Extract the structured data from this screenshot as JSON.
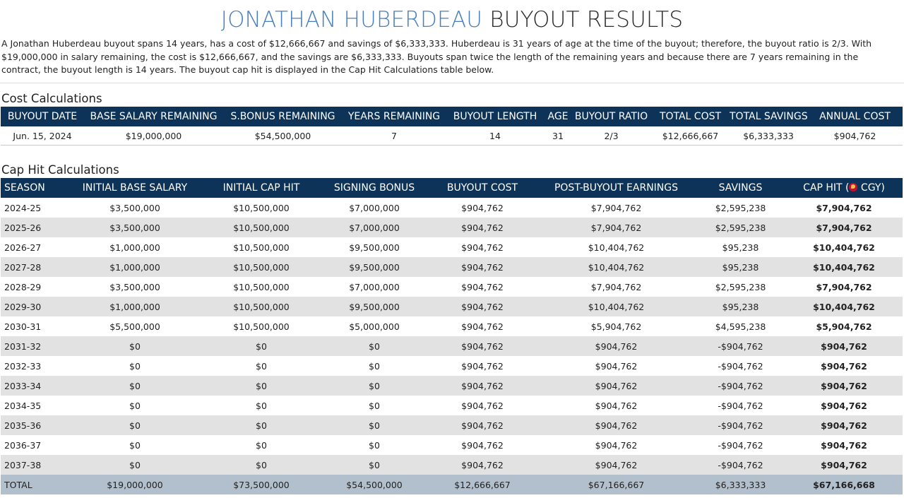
{
  "title": {
    "name": "JONATHAN HUBERDEAU",
    "rest": "BUYOUT RESULTS"
  },
  "intro": "A Jonathan Huberdeau buyout spans 14 years, has a cost of $12,666,667 and savings of $6,333,333. Huberdeau is 31 years of age at the time of the buyout; therefore, the buyout ratio is 2/3. With $19,000,000 in salary remaining, the cost is $12,666,667, and the savings are $6,333,333. Buyouts span twice the length of the remaining years and because there are 7 years remaining in the contract, the buyout length is 14 years. The buyout cap hit is displayed in the Cap Hit Calculations table below.",
  "cost": {
    "title": "Cost Calculations",
    "headers": [
      "BUYOUT DATE",
      "BASE SALARY REMAINING",
      "S.BONUS REMAINING",
      "YEARS REMAINING",
      "BUYOUT LENGTH",
      "AGE",
      "BUYOUT RATIO",
      "TOTAL COST",
      "TOTAL SAVINGS",
      "ANNUAL COST"
    ],
    "row": [
      "Jun. 15, 2024",
      "$19,000,000",
      "$54,500,000",
      "7",
      "14",
      "31",
      "2/3",
      "$12,666,667",
      "$6,333,333",
      "$904,762"
    ]
  },
  "caphit": {
    "title": "Cap Hit Calculations",
    "headers": [
      "SEASON",
      "INITIAL BASE SALARY",
      "INITIAL CAP HIT",
      "SIGNING BONUS",
      "BUYOUT COST",
      "POST-BUYOUT EARNINGS",
      "SAVINGS",
      "CAP HIT ("
    ],
    "cap_hit_team": " CGY)",
    "team_icon": "flames-logo-icon",
    "rows": [
      [
        "2024-25",
        "$3,500,000",
        "$10,500,000",
        "$7,000,000",
        "$904,762",
        "$7,904,762",
        "$2,595,238",
        "$7,904,762"
      ],
      [
        "2025-26",
        "$3,500,000",
        "$10,500,000",
        "$7,000,000",
        "$904,762",
        "$7,904,762",
        "$2,595,238",
        "$7,904,762"
      ],
      [
        "2026-27",
        "$1,000,000",
        "$10,500,000",
        "$9,500,000",
        "$904,762",
        "$10,404,762",
        "$95,238",
        "$10,404,762"
      ],
      [
        "2027-28",
        "$1,000,000",
        "$10,500,000",
        "$9,500,000",
        "$904,762",
        "$10,404,762",
        "$95,238",
        "$10,404,762"
      ],
      [
        "2028-29",
        "$3,500,000",
        "$10,500,000",
        "$7,000,000",
        "$904,762",
        "$7,904,762",
        "$2,595,238",
        "$7,904,762"
      ],
      [
        "2029-30",
        "$1,000,000",
        "$10,500,000",
        "$9,500,000",
        "$904,762",
        "$10,404,762",
        "$95,238",
        "$10,404,762"
      ],
      [
        "2030-31",
        "$5,500,000",
        "$10,500,000",
        "$5,000,000",
        "$904,762",
        "$5,904,762",
        "$4,595,238",
        "$5,904,762"
      ],
      [
        "2031-32",
        "$0",
        "$0",
        "$0",
        "$904,762",
        "$904,762",
        "-$904,762",
        "$904,762"
      ],
      [
        "2032-33",
        "$0",
        "$0",
        "$0",
        "$904,762",
        "$904,762",
        "-$904,762",
        "$904,762"
      ],
      [
        "2033-34",
        "$0",
        "$0",
        "$0",
        "$904,762",
        "$904,762",
        "-$904,762",
        "$904,762"
      ],
      [
        "2034-35",
        "$0",
        "$0",
        "$0",
        "$904,762",
        "$904,762",
        "-$904,762",
        "$904,762"
      ],
      [
        "2035-36",
        "$0",
        "$0",
        "$0",
        "$904,762",
        "$904,762",
        "-$904,762",
        "$904,762"
      ],
      [
        "2036-37",
        "$0",
        "$0",
        "$0",
        "$904,762",
        "$904,762",
        "-$904,762",
        "$904,762"
      ],
      [
        "2037-38",
        "$0",
        "$0",
        "$0",
        "$904,762",
        "$904,762",
        "-$904,762",
        "$904,762"
      ]
    ],
    "total": [
      "TOTAL",
      "$19,000,000",
      "$73,500,000",
      "$54,500,000",
      "$12,666,667",
      "$67,166,667",
      "$6,333,333",
      "$67,166,668"
    ]
  },
  "colors": {
    "header_bg": "#0e3358",
    "title_accent": "#4a7fbd",
    "row_shade": "#e2e2e2",
    "total_bg": "#b2c0cd"
  }
}
